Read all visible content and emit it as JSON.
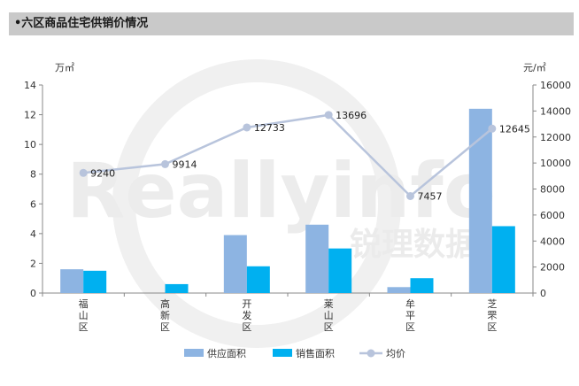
{
  "header": {
    "title": "•六区商品住宅供销价情况"
  },
  "chart_data": {
    "type": "bar",
    "categories": [
      "福山区",
      "高新区",
      "开发区",
      "莱山区",
      "牟平区",
      "芝罘区"
    ],
    "series": [
      {
        "name": "供应面积",
        "kind": "bar",
        "axis": "left",
        "values": [
          1.6,
          0,
          3.9,
          4.6,
          0.4,
          12.4
        ]
      },
      {
        "name": "销售面积",
        "kind": "bar",
        "axis": "left",
        "values": [
          1.5,
          0.6,
          1.8,
          3.0,
          1.0,
          4.5
        ]
      },
      {
        "name": "均价",
        "kind": "line",
        "axis": "right",
        "values": [
          9240,
          9914,
          12733,
          13696,
          7457,
          12645
        ]
      }
    ],
    "data_labels": [
      "9240",
      "9914",
      "12733",
      "13696",
      "7457",
      "12645"
    ],
    "ylabel": "万㎡",
    "y2label": "元/㎡",
    "ylim": [
      0,
      14
    ],
    "y2lim": [
      0,
      16000
    ],
    "yticks": [
      0,
      2,
      4,
      6,
      8,
      10,
      12,
      14
    ],
    "y2ticks": [
      0,
      2000,
      4000,
      6000,
      8000,
      10000,
      12000,
      14000,
      16000
    ],
    "grid": false,
    "legend_position": "bottom",
    "colors": {
      "supply": "#8db4e2",
      "sales": "#00b0f0",
      "price": "#b8c4dc"
    }
  },
  "watermark": {
    "text_en": "Reallyinfo",
    "text_cn": "锐理数据"
  }
}
